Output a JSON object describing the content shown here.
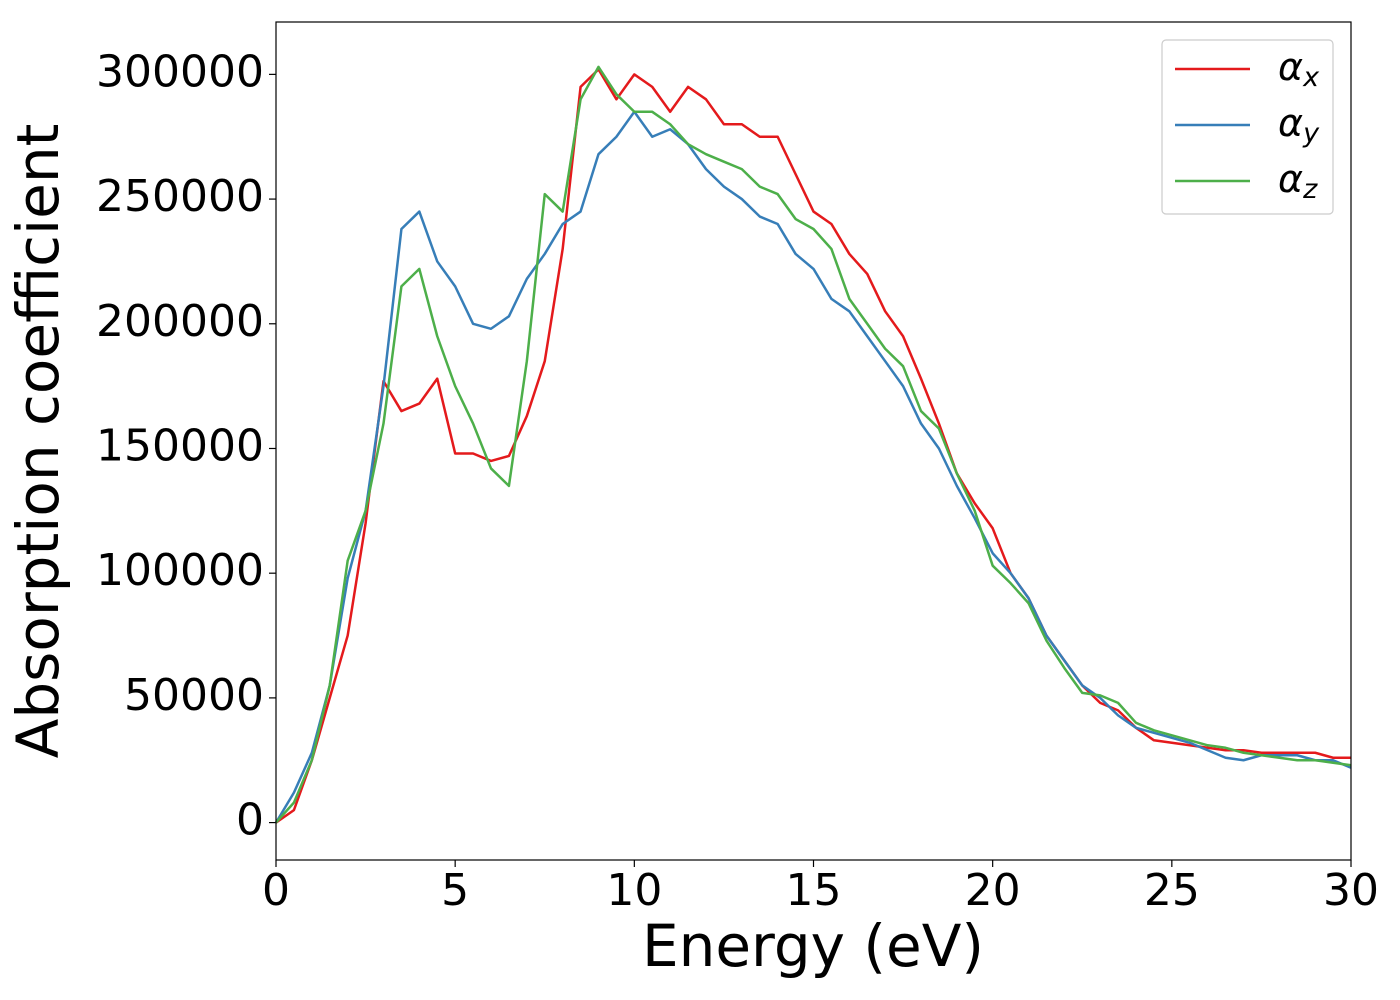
{
  "chart_data": {
    "type": "line",
    "xlabel": "Energy (eV)",
    "ylabel": "Absorption coefficient",
    "x": [
      0,
      0.5,
      1,
      1.5,
      2,
      2.5,
      3,
      3.5,
      4,
      4.5,
      5,
      5.5,
      6,
      6.5,
      7,
      7.5,
      8,
      8.5,
      9,
      9.5,
      10,
      10.5,
      11,
      11.5,
      12,
      12.5,
      13,
      13.5,
      14,
      14.5,
      15,
      15.5,
      16,
      16.5,
      17,
      17.5,
      18,
      18.5,
      19,
      19.5,
      20,
      20.5,
      21,
      21.5,
      22,
      22.5,
      23,
      23.5,
      24,
      24.5,
      25,
      25.5,
      26,
      26.5,
      27,
      27.5,
      28,
      28.5,
      29,
      29.5,
      30
    ],
    "series": [
      {
        "name": "αx",
        "color": "#e41a1c",
        "values": [
          0,
          5000,
          25000,
          50000,
          75000,
          120000,
          177000,
          165000,
          168000,
          178000,
          148000,
          148000,
          145000,
          147000,
          163000,
          185000,
          230000,
          295000,
          302000,
          290000,
          300000,
          295000,
          285000,
          295000,
          290000,
          280000,
          280000,
          275000,
          275000,
          260000,
          245000,
          240000,
          228000,
          220000,
          205000,
          195000,
          178000,
          160000,
          140000,
          128000,
          118000,
          100000,
          90000,
          75000,
          65000,
          55000,
          48000,
          45000,
          38000,
          33000,
          32000,
          31000,
          30000,
          29000,
          29000,
          28000,
          28000,
          28000,
          28000,
          26000,
          26000
        ]
      },
      {
        "name": "αy",
        "color": "#377eb8",
        "values": [
          0,
          12000,
          28000,
          55000,
          98000,
          125000,
          175000,
          238000,
          245000,
          225000,
          215000,
          200000,
          198000,
          203000,
          218000,
          228000,
          240000,
          245000,
          268000,
          275000,
          285000,
          275000,
          278000,
          272000,
          262000,
          255000,
          250000,
          243000,
          240000,
          228000,
          222000,
          210000,
          205000,
          195000,
          185000,
          175000,
          160000,
          150000,
          135000,
          122000,
          108000,
          100000,
          90000,
          75000,
          65000,
          55000,
          50000,
          43000,
          38000,
          36000,
          34000,
          32000,
          29000,
          26000,
          25000,
          27000,
          27000,
          27000,
          25000,
          25000,
          22000
        ]
      },
      {
        "name": "αz",
        "color": "#4daf4a",
        "values": [
          0,
          8000,
          25000,
          55000,
          105000,
          125000,
          160000,
          215000,
          222000,
          195000,
          175000,
          160000,
          142000,
          135000,
          185000,
          252000,
          245000,
          290000,
          303000,
          292000,
          285000,
          285000,
          280000,
          272000,
          268000,
          265000,
          262000,
          255000,
          252000,
          242000,
          238000,
          230000,
          210000,
          200000,
          190000,
          183000,
          165000,
          158000,
          140000,
          125000,
          103000,
          96000,
          88000,
          73000,
          62000,
          52000,
          51000,
          48000,
          40000,
          37000,
          35000,
          33000,
          31000,
          30000,
          28000,
          27000,
          26000,
          25000,
          25000,
          24000,
          23000
        ]
      }
    ],
    "xlim": [
      0,
      30
    ],
    "xticks": [
      0,
      5,
      10,
      15,
      20,
      25,
      30
    ],
    "ylim": [
      -15000,
      321000
    ],
    "yticks": [
      0,
      50000,
      100000,
      150000,
      200000,
      250000,
      300000
    ],
    "legend": "upper right",
    "grid": false
  }
}
